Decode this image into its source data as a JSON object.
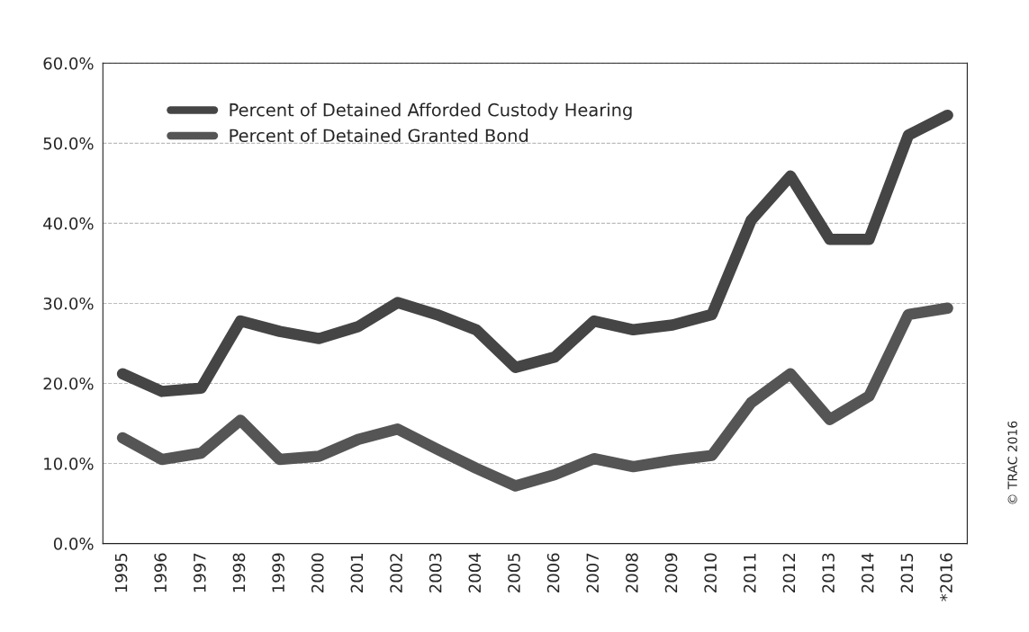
{
  "chart_data": {
    "type": "line",
    "categories": [
      "1995",
      "1996",
      "1997",
      "1998",
      "1999",
      "2000",
      "2001",
      "2002",
      "2003",
      "2004",
      "2005",
      "2006",
      "2007",
      "2008",
      "2009",
      "2010",
      "2011",
      "2012",
      "2013",
      "2014",
      "2015",
      "*2016"
    ],
    "series": [
      {
        "name": "Percent of Detained Afforded Custody Hearing",
        "color": "#454545",
        "values": [
          21.2,
          19.0,
          19.4,
          27.8,
          26.5,
          25.6,
          27.1,
          30.1,
          28.6,
          26.7,
          22.0,
          23.3,
          27.8,
          26.7,
          27.3,
          28.6,
          40.4,
          45.9,
          38.0,
          38.0,
          51.0,
          53.5
        ]
      },
      {
        "name": "Percent of Detained Granted Bond",
        "color": "#555555",
        "values": [
          13.2,
          10.5,
          11.3,
          15.4,
          10.5,
          10.9,
          13.0,
          14.3,
          11.8,
          9.4,
          7.2,
          8.6,
          10.6,
          9.6,
          10.4,
          11.0,
          17.6,
          21.2,
          15.5,
          18.4,
          28.6,
          29.4
        ]
      }
    ],
    "ylim": [
      0,
      60
    ],
    "yticks": [
      {
        "value": 0,
        "label": "0.0%"
      },
      {
        "value": 10,
        "label": "10.0%"
      },
      {
        "value": 20,
        "label": "20.0%"
      },
      {
        "value": 30,
        "label": "30.0%"
      },
      {
        "value": 40,
        "label": "40.0%"
      },
      {
        "value": 50,
        "label": "50.0%"
      },
      {
        "value": 60,
        "label": "60.0%"
      }
    ],
    "grid": "y",
    "legend": "top left",
    "marker": "none",
    "line_style": "solid",
    "annotations": [
      "© TRAC 2016"
    ]
  }
}
